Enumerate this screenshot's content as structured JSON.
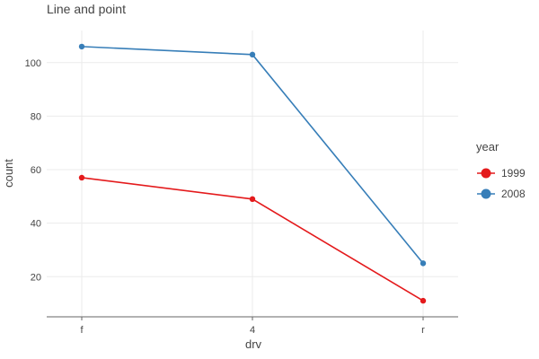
{
  "chart_data": {
    "type": "line",
    "title": "Line and point",
    "xlabel": "drv",
    "ylabel": "count",
    "categories": [
      "f",
      "4",
      "r"
    ],
    "yticks": [
      20,
      40,
      60,
      80,
      100
    ],
    "ylim": [
      5,
      112
    ],
    "grid": true,
    "legend_title": "year",
    "legend_position": "right",
    "series": [
      {
        "name": "1999",
        "color": "#e41a1c",
        "values": [
          57,
          49,
          11
        ]
      },
      {
        "name": "2008",
        "color": "#377eb8",
        "values": [
          106,
          103,
          25
        ]
      }
    ]
  }
}
